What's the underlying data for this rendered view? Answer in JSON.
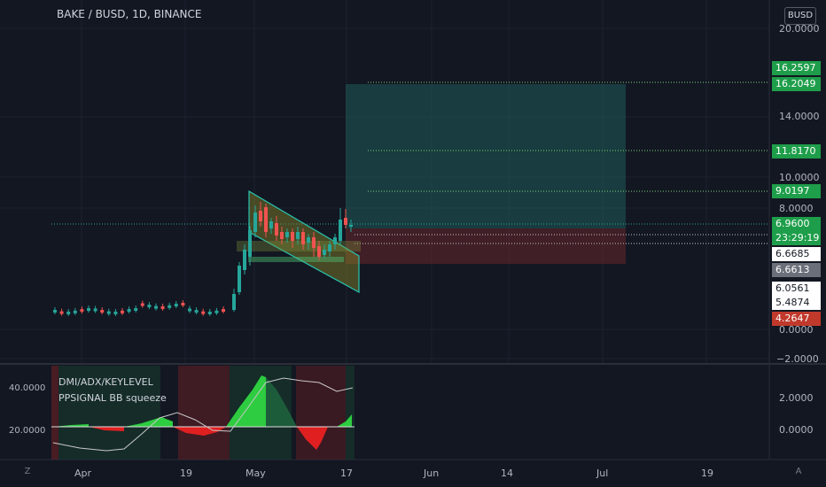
{
  "header": {
    "title": "BAKE / BUSD, 1D, BINANCE",
    "currency_button": "BUSD"
  },
  "colors": {
    "background": "#131722",
    "up": "#26a69a",
    "down": "#ef5350",
    "green_badge": "#1e9e4a",
    "red_badge": "#c0392b",
    "gray_badge": "#6b6f7a"
  },
  "price_axis": {
    "ticks": [
      "20.0000",
      "14.0000",
      "10.0000",
      "8.0000",
      "0.0000",
      "−2.0000"
    ]
  },
  "price_badges": [
    {
      "value": "16.2597",
      "style": "green"
    },
    {
      "value": "16.2049",
      "style": "green"
    },
    {
      "value": "11.8170",
      "style": "green"
    },
    {
      "value": "9.0197",
      "style": "green"
    },
    {
      "value": "6.9600",
      "style": "green"
    },
    {
      "value": "23:29:19",
      "style": "green"
    },
    {
      "value": "6.6685",
      "style": "white"
    },
    {
      "value": "6.6613",
      "style": "gray"
    },
    {
      "value": "6.0561",
      "style": "white"
    },
    {
      "value": "5.4874",
      "style": "white"
    },
    {
      "value": "4.2647",
      "style": "red"
    }
  ],
  "indicator": {
    "name_1": "DMI/ADX/KEYLEVEL",
    "name_2": "PPSIGNAL BB squeeze",
    "left_ticks": [
      "40.0000",
      "20.0000"
    ],
    "right_ticks": [
      "2.0000",
      "0.0000"
    ]
  },
  "time_axis": {
    "labels": [
      "Apr",
      "19",
      "May",
      "17",
      "Jun",
      "14",
      "Jul",
      "19"
    ]
  },
  "corner_buttons": {
    "left": "Z",
    "right": "A"
  }
}
